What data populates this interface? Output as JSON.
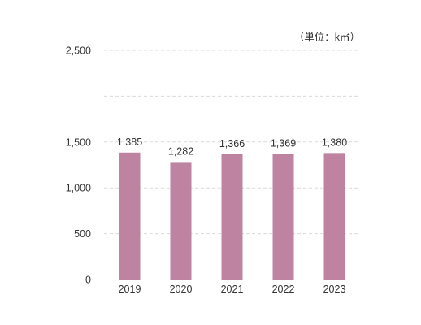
{
  "chart_data": {
    "type": "bar",
    "categories": [
      "2019",
      "2020",
      "2021",
      "2022",
      "2023"
    ],
    "series": [
      {
        "values": [
          1385,
          1282,
          1366,
          1369,
          1380
        ]
      }
    ],
    "data_labels": [
      "1,385",
      "1,282",
      "1,366",
      "1,369",
      "1,380"
    ],
    "unit": "（単位：k㎡）",
    "ylim": [
      0,
      2500
    ],
    "yticks": [
      0,
      500,
      1000,
      1500,
      2000,
      2500
    ],
    "ytick_labels": [
      "0",
      "500",
      "1,000",
      "1,500",
      "",
      "2,500"
    ],
    "grid": true,
    "bar_color": "#bd83a0"
  }
}
